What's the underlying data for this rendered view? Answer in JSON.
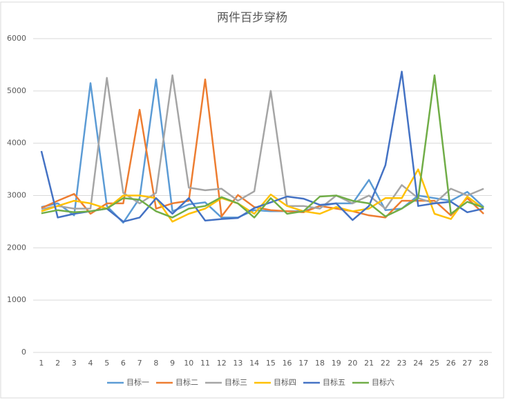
{
  "chart_data": {
    "type": "line",
    "title": "两件百步穿杨",
    "categories": [
      "1",
      "2",
      "3",
      "4",
      "5",
      "6",
      "7",
      "8",
      "9",
      "10",
      "11",
      "12",
      "13",
      "14",
      "15",
      "16",
      "17",
      "18",
      "19",
      "20",
      "21",
      "22",
      "23",
      "24",
      "25",
      "26",
      "27",
      "28"
    ],
    "series": [
      {
        "name": "目标一",
        "color": "#5b9bd5",
        "values": [
          2780,
          2850,
          2620,
          5150,
          2800,
          2480,
          2950,
          5220,
          2700,
          2830,
          2870,
          2580,
          2580,
          2720,
          2700,
          2700,
          2700,
          2800,
          2850,
          2850,
          3300,
          2720,
          2750,
          3000,
          2950,
          2900,
          3070,
          2780
        ]
      },
      {
        "name": "目标二",
        "color": "#ed7d31",
        "values": [
          2760,
          2900,
          3030,
          2650,
          2850,
          2850,
          4640,
          2750,
          2850,
          2900,
          5220,
          2600,
          3010,
          2780,
          2720,
          2700,
          2680,
          2800,
          2750,
          2700,
          2620,
          2580,
          2900,
          2900,
          2900,
          2620,
          2950,
          2650
        ]
      },
      {
        "name": "目标三",
        "color": "#a5a5a5",
        "values": [
          2740,
          2800,
          2750,
          2750,
          5250,
          3050,
          2850,
          3050,
          5300,
          3150,
          3100,
          3130,
          2900,
          3080,
          5000,
          2800,
          2800,
          2750,
          3000,
          2850,
          3000,
          2750,
          3200,
          2950,
          2850,
          3130,
          3000,
          3130
        ]
      },
      {
        "name": "目标四",
        "color": "#ffc000",
        "values": [
          2700,
          2800,
          2900,
          2850,
          2750,
          3000,
          3000,
          2950,
          2500,
          2650,
          2750,
          2950,
          2850,
          2650,
          3020,
          2800,
          2700,
          2650,
          2780,
          2700,
          2750,
          2950,
          2950,
          3500,
          2650,
          2550,
          2980,
          2750
        ]
      },
      {
        "name": "目标五",
        "color": "#4472c4",
        "values": [
          3850,
          2580,
          2650,
          2700,
          2750,
          2500,
          2580,
          2950,
          2650,
          2950,
          2520,
          2550,
          2570,
          2760,
          2870,
          2980,
          2940,
          2820,
          2850,
          2530,
          2800,
          3580,
          5370,
          2800,
          2850,
          2880,
          2680,
          2750
        ]
      },
      {
        "name": "目标六",
        "color": "#70ad47",
        "values": [
          2660,
          2720,
          2680,
          2700,
          2750,
          2950,
          2920,
          2700,
          2580,
          2750,
          2800,
          2970,
          2850,
          2580,
          2950,
          2650,
          2700,
          2980,
          3000,
          2900,
          2850,
          2600,
          2750,
          2950,
          5300,
          2650,
          2880,
          2770
        ]
      }
    ],
    "ylim": [
      0,
      6000
    ],
    "yticks": [
      0,
      1000,
      2000,
      3000,
      4000,
      5000,
      6000
    ],
    "grid": true,
    "legend": "bottom"
  }
}
